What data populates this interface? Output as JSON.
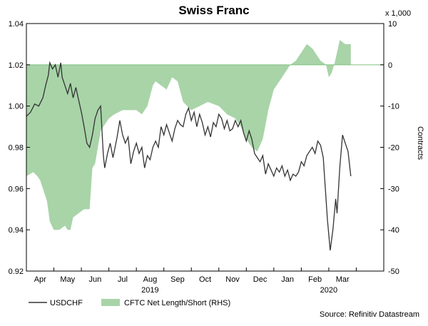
{
  "chart_data": {
    "type": "line",
    "title": "Swiss Franc",
    "left_axis": {
      "ylim": [
        0.92,
        1.04
      ],
      "ticks": [
        "1.04",
        "1.02",
        "1.00",
        "0.98",
        "0.96",
        "0.94",
        "0.92"
      ],
      "tick_values": [
        1.04,
        1.02,
        1.0,
        0.98,
        0.96,
        0.94,
        0.92
      ]
    },
    "right_axis": {
      "ylim": [
        -50,
        10
      ],
      "ticks": [
        "10",
        "0",
        "-10",
        "-20",
        "-30",
        "-40",
        "-50"
      ],
      "tick_values": [
        10,
        0,
        -10,
        -20,
        -30,
        -40,
        -50
      ],
      "label": "Contracts",
      "unit": "x 1,000"
    },
    "x_axis": {
      "xlim": [
        0,
        13
      ],
      "months": [
        {
          "label": "Apr",
          "x": 0.5
        },
        {
          "label": "May",
          "x": 1.5
        },
        {
          "label": "Jun",
          "x": 2.5
        },
        {
          "label": "Jul",
          "x": 3.5
        },
        {
          "label": "Aug",
          "x": 4.5
        },
        {
          "label": "Sep",
          "x": 5.5
        },
        {
          "label": "Oct",
          "x": 6.5
        },
        {
          "label": "Nov",
          "x": 7.5
        },
        {
          "label": "Dec",
          "x": 8.5
        },
        {
          "label": "Jan",
          "x": 9.5
        },
        {
          "label": "Feb",
          "x": 10.5
        },
        {
          "label": "Mar",
          "x": 11.5
        }
      ],
      "years": [
        {
          "label": "2019",
          "x": 4.5
        },
        {
          "label": "2020",
          "x": 11.0
        }
      ]
    },
    "series": [
      {
        "name": "USDCHF",
        "axis": "left",
        "color": "#333333",
        "points": [
          [
            0.0,
            0.995
          ],
          [
            0.15,
            0.997
          ],
          [
            0.3,
            1.001
          ],
          [
            0.45,
            1.0
          ],
          [
            0.6,
            1.004
          ],
          [
            0.7,
            1.01
          ],
          [
            0.8,
            1.015
          ],
          [
            0.85,
            1.021
          ],
          [
            0.95,
            1.018
          ],
          [
            1.05,
            1.02
          ],
          [
            1.15,
            1.014
          ],
          [
            1.25,
            1.021
          ],
          [
            1.3,
            1.014
          ],
          [
            1.4,
            1.01
          ],
          [
            1.5,
            1.006
          ],
          [
            1.6,
            1.011
          ],
          [
            1.7,
            1.004
          ],
          [
            1.8,
            1.009
          ],
          [
            1.9,
            1.003
          ],
          [
            2.0,
            0.997
          ],
          [
            2.1,
            0.99
          ],
          [
            2.2,
            0.982
          ],
          [
            2.3,
            0.98
          ],
          [
            2.4,
            0.986
          ],
          [
            2.5,
            0.994
          ],
          [
            2.6,
            0.998
          ],
          [
            2.7,
            1.0
          ],
          [
            2.8,
            0.976
          ],
          [
            2.85,
            0.97
          ],
          [
            2.95,
            0.977
          ],
          [
            3.05,
            0.982
          ],
          [
            3.15,
            0.975
          ],
          [
            3.3,
            0.985
          ],
          [
            3.4,
            0.993
          ],
          [
            3.5,
            0.986
          ],
          [
            3.6,
            0.982
          ],
          [
            3.7,
            0.985
          ],
          [
            3.8,
            0.972
          ],
          [
            3.9,
            0.978
          ],
          [
            4.0,
            0.982
          ],
          [
            4.1,
            0.977
          ],
          [
            4.2,
            0.98
          ],
          [
            4.3,
            0.97
          ],
          [
            4.4,
            0.976
          ],
          [
            4.5,
            0.974
          ],
          [
            4.6,
            0.98
          ],
          [
            4.7,
            0.983
          ],
          [
            4.8,
            0.98
          ],
          [
            4.9,
            0.99
          ],
          [
            5.0,
            0.986
          ],
          [
            5.1,
            0.991
          ],
          [
            5.2,
            0.987
          ],
          [
            5.3,
            0.983
          ],
          [
            5.4,
            0.989
          ],
          [
            5.5,
            0.993
          ],
          [
            5.6,
            0.991
          ],
          [
            5.7,
            0.99
          ],
          [
            5.8,
            0.996
          ],
          [
            5.9,
            0.999
          ],
          [
            6.0,
            0.993
          ],
          [
            6.1,
            0.997
          ],
          [
            6.2,
            0.99
          ],
          [
            6.3,
            0.996
          ],
          [
            6.4,
            0.992
          ],
          [
            6.5,
            0.986
          ],
          [
            6.6,
            0.99
          ],
          [
            6.7,
            0.985
          ],
          [
            6.8,
            0.992
          ],
          [
            6.9,
            0.99
          ],
          [
            7.0,
            0.996
          ],
          [
            7.1,
            0.994
          ],
          [
            7.2,
            0.989
          ],
          [
            7.3,
            0.993
          ],
          [
            7.4,
            0.988
          ],
          [
            7.5,
            0.989
          ],
          [
            7.6,
            0.993
          ],
          [
            7.7,
            0.99
          ],
          [
            7.8,
            0.993
          ],
          [
            7.9,
            0.987
          ],
          [
            8.0,
            0.983
          ],
          [
            8.1,
            0.988
          ],
          [
            8.2,
            0.984
          ],
          [
            8.3,
            0.977
          ],
          [
            8.4,
            0.975
          ],
          [
            8.5,
            0.973
          ],
          [
            8.6,
            0.976
          ],
          [
            8.7,
            0.967
          ],
          [
            8.8,
            0.972
          ],
          [
            8.9,
            0.969
          ],
          [
            9.0,
            0.966
          ],
          [
            9.1,
            0.97
          ],
          [
            9.2,
            0.968
          ],
          [
            9.3,
            0.971
          ],
          [
            9.4,
            0.966
          ],
          [
            9.5,
            0.969
          ],
          [
            9.6,
            0.964
          ],
          [
            9.7,
            0.967
          ],
          [
            9.8,
            0.966
          ],
          [
            9.9,
            0.968
          ],
          [
            10.0,
            0.973
          ],
          [
            10.1,
            0.971
          ],
          [
            10.2,
            0.976
          ],
          [
            10.3,
            0.978
          ],
          [
            10.4,
            0.98
          ],
          [
            10.5,
            0.977
          ],
          [
            10.6,
            0.983
          ],
          [
            10.7,
            0.981
          ],
          [
            10.8,
            0.975
          ],
          [
            10.85,
            0.965
          ],
          [
            10.95,
            0.945
          ],
          [
            11.05,
            0.93
          ],
          [
            11.15,
            0.94
          ],
          [
            11.25,
            0.955
          ],
          [
            11.3,
            0.948
          ],
          [
            11.4,
            0.97
          ],
          [
            11.5,
            0.986
          ],
          [
            11.6,
            0.982
          ],
          [
            11.7,
            0.978
          ],
          [
            11.8,
            0.966
          ]
        ]
      },
      {
        "name": "CFTC Net Length/Short (RHS)",
        "axis": "right",
        "color": "#a8d4a8",
        "points": [
          [
            0.0,
            -27
          ],
          [
            0.25,
            -26
          ],
          [
            0.4,
            -27
          ],
          [
            0.5,
            -28
          ],
          [
            0.75,
            -33
          ],
          [
            0.85,
            -38
          ],
          [
            1.0,
            -40
          ],
          [
            1.2,
            -40
          ],
          [
            1.4,
            -39
          ],
          [
            1.5,
            -40
          ],
          [
            1.6,
            -40
          ],
          [
            1.7,
            -37
          ],
          [
            1.9,
            -36
          ],
          [
            2.1,
            -35
          ],
          [
            2.3,
            -35
          ],
          [
            2.4,
            -25
          ],
          [
            2.5,
            -24
          ],
          [
            2.6,
            -20
          ],
          [
            2.7,
            -16
          ],
          [
            3.0,
            -13
          ],
          [
            3.2,
            -12
          ],
          [
            3.5,
            -11
          ],
          [
            3.8,
            -11
          ],
          [
            4.0,
            -11
          ],
          [
            4.2,
            -12
          ],
          [
            4.4,
            -10
          ],
          [
            4.6,
            -5
          ],
          [
            4.7,
            -4
          ],
          [
            4.9,
            -5
          ],
          [
            5.1,
            -6
          ],
          [
            5.3,
            -3
          ],
          [
            5.5,
            -4
          ],
          [
            5.7,
            -9
          ],
          [
            6.0,
            -11
          ],
          [
            6.3,
            -10
          ],
          [
            6.6,
            -9
          ],
          [
            7.0,
            -10
          ],
          [
            7.3,
            -12
          ],
          [
            7.6,
            -13
          ],
          [
            7.8,
            -15
          ],
          [
            8.0,
            -18
          ],
          [
            8.2,
            -20
          ],
          [
            8.4,
            -21
          ],
          [
            8.6,
            -18
          ],
          [
            8.8,
            -11
          ],
          [
            9.0,
            -6
          ],
          [
            9.2,
            -4
          ],
          [
            9.4,
            -2
          ],
          [
            9.6,
            0
          ],
          [
            9.8,
            1
          ],
          [
            10.0,
            3
          ],
          [
            10.2,
            5
          ],
          [
            10.4,
            4
          ],
          [
            10.6,
            2
          ],
          [
            10.7,
            1
          ],
          [
            10.9,
            0
          ],
          [
            11.0,
            -3
          ],
          [
            11.1,
            -2
          ],
          [
            11.2,
            0
          ],
          [
            11.4,
            6
          ],
          [
            11.6,
            5
          ],
          [
            11.8,
            5
          ]
        ]
      }
    ],
    "legend": {
      "placement": "bottom-left"
    }
  },
  "source": "Source: Refinitiv Datastream"
}
